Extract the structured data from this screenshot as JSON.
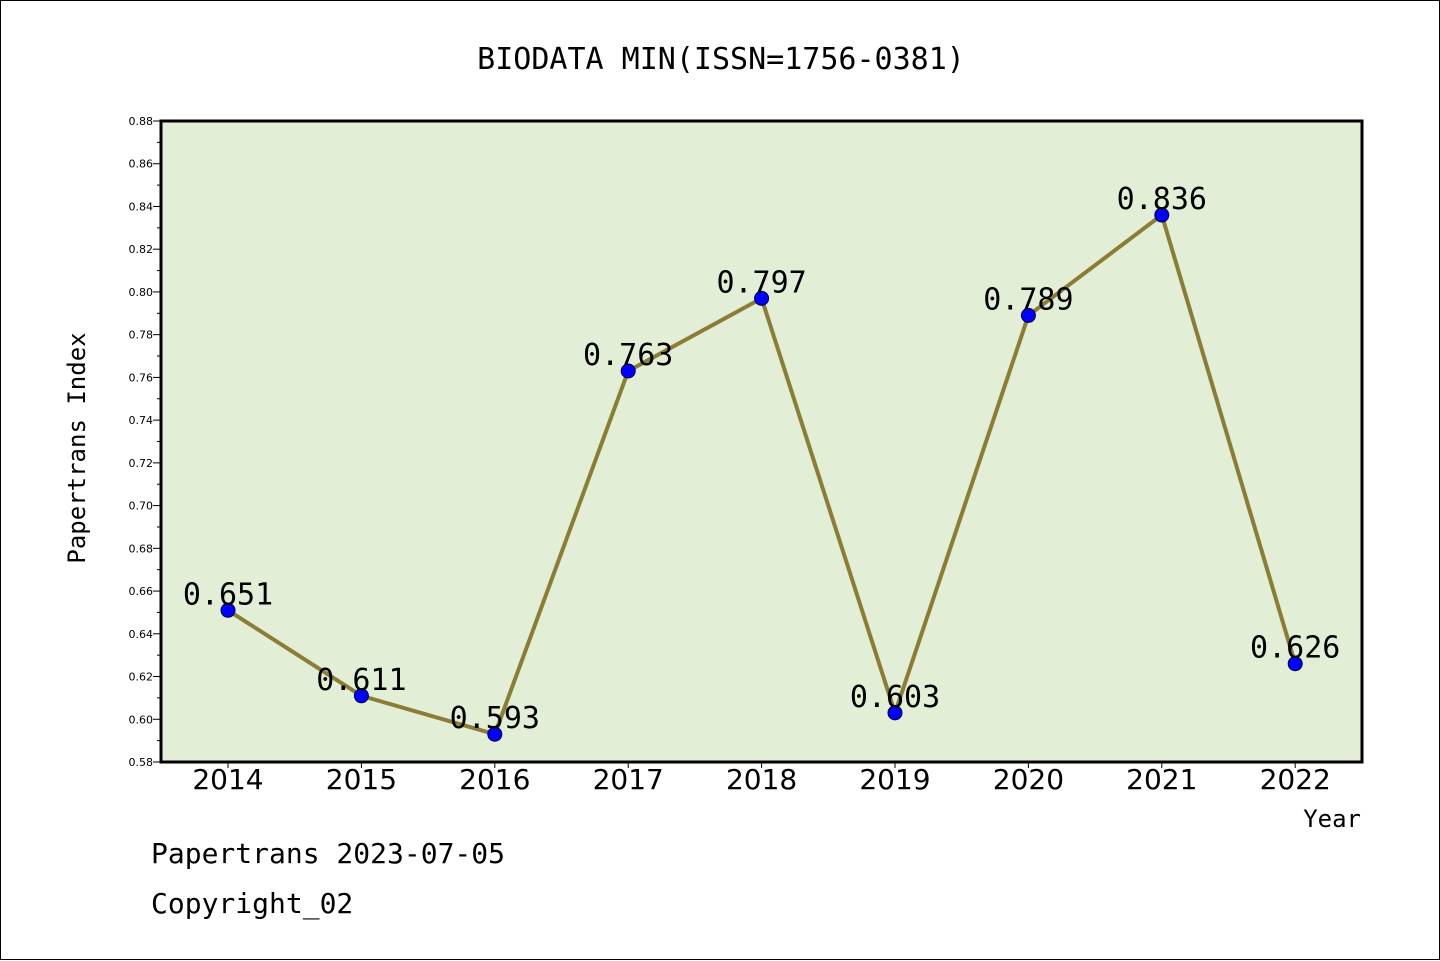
{
  "chart_data": {
    "type": "line",
    "title": "BIODATA MIN(ISSN=1756-0381)",
    "xlabel": "Year",
    "ylabel": "Papertrans Index",
    "categories": [
      "2014",
      "2015",
      "2016",
      "2017",
      "2018",
      "2019",
      "2020",
      "2021",
      "2022"
    ],
    "series": [
      {
        "values": [
          0.651,
          0.611,
          0.593,
          0.763,
          0.797,
          0.603,
          0.789,
          0.836,
          0.626
        ],
        "labels": [
          "0.651",
          "0.611",
          "0.593",
          "0.763",
          "0.797",
          "0.603",
          "0.789",
          "0.836",
          "0.626"
        ],
        "line_color": "#8b7d35",
        "marker_color": "#0000ff"
      }
    ],
    "ylim": [
      0.58,
      0.88
    ],
    "yticks": [
      "0.58",
      "0.60",
      "0.62",
      "0.64",
      "0.66",
      "0.68",
      "0.70",
      "0.72",
      "0.74",
      "0.76",
      "0.78",
      "0.80",
      "0.82",
      "0.84",
      "0.86",
      "0.88"
    ],
    "plot_background": "#e2efd6",
    "grid": false,
    "legend": "none"
  },
  "footer": {
    "line1": "Papertrans 2023-07-05",
    "line2": "Copyright_02"
  }
}
